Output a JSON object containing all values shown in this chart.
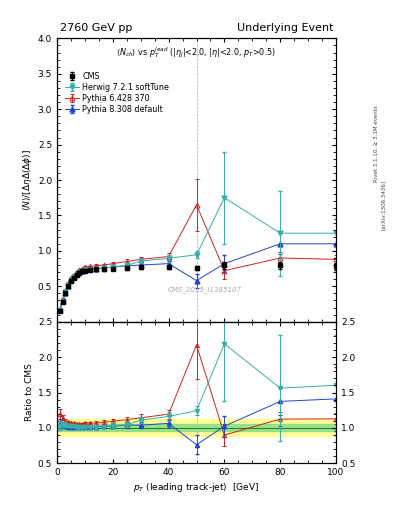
{
  "title_left": "2760 GeV pp",
  "title_right": "Underlying Event",
  "ylabel_main": "\\langle N\\rangle/[\\Delta\\eta\\Delta(\\Delta\\phi)]",
  "ylabel_ratio": "Ratio to CMS",
  "xlabel": "p_{T} (leading track-jet)  [GeV]",
  "right_label1": "Rivet 3.1.10, ≥ 3.1M events",
  "right_label2": "[arXiv:1306.3436]",
  "watermark": "CMS_2015_I1385107",
  "cms_x": [
    1,
    2,
    3,
    4,
    5,
    6,
    7,
    8,
    9,
    10,
    12,
    14,
    17,
    20,
    25,
    30,
    40,
    50,
    60,
    80,
    100
  ],
  "cms_y": [
    0.15,
    0.28,
    0.4,
    0.5,
    0.58,
    0.62,
    0.66,
    0.69,
    0.71,
    0.72,
    0.73,
    0.74,
    0.74,
    0.75,
    0.76,
    0.77,
    0.77,
    0.76,
    0.8,
    0.8,
    0.78
  ],
  "cms_yerr": [
    0.02,
    0.02,
    0.02,
    0.02,
    0.02,
    0.02,
    0.02,
    0.02,
    0.02,
    0.02,
    0.02,
    0.02,
    0.02,
    0.02,
    0.03,
    0.03,
    0.03,
    0.03,
    0.05,
    0.05,
    0.05
  ],
  "herwig_x": [
    1,
    2,
    3,
    4,
    5,
    6,
    7,
    8,
    9,
    10,
    12,
    14,
    17,
    20,
    25,
    30,
    40,
    50,
    60,
    80,
    100
  ],
  "herwig_y": [
    0.155,
    0.295,
    0.415,
    0.515,
    0.595,
    0.635,
    0.665,
    0.695,
    0.715,
    0.725,
    0.735,
    0.745,
    0.755,
    0.775,
    0.795,
    0.855,
    0.895,
    0.945,
    1.75,
    1.25,
    1.25
  ],
  "herwig_yerr": [
    0.01,
    0.01,
    0.01,
    0.01,
    0.01,
    0.01,
    0.01,
    0.01,
    0.01,
    0.01,
    0.01,
    0.02,
    0.02,
    0.03,
    0.03,
    0.03,
    0.05,
    0.05,
    0.65,
    0.6,
    0.55
  ],
  "pythia6_x": [
    1,
    2,
    3,
    4,
    5,
    6,
    7,
    8,
    9,
    10,
    12,
    14,
    17,
    20,
    25,
    30,
    40,
    50,
    60,
    80,
    100
  ],
  "pythia6_y": [
    0.18,
    0.32,
    0.44,
    0.54,
    0.62,
    0.66,
    0.7,
    0.73,
    0.75,
    0.77,
    0.78,
    0.79,
    0.8,
    0.82,
    0.85,
    0.88,
    0.92,
    1.65,
    0.72,
    0.9,
    0.88
  ],
  "pythia6_yerr": [
    0.01,
    0.01,
    0.01,
    0.01,
    0.01,
    0.01,
    0.01,
    0.01,
    0.01,
    0.01,
    0.01,
    0.02,
    0.02,
    0.03,
    0.03,
    0.04,
    0.05,
    0.37,
    0.12,
    0.08,
    0.06
  ],
  "pythia8_x": [
    1,
    2,
    3,
    4,
    5,
    6,
    7,
    8,
    9,
    10,
    12,
    14,
    17,
    20,
    25,
    30,
    40,
    50,
    60,
    80,
    100
  ],
  "pythia8_y": [
    0.16,
    0.29,
    0.41,
    0.51,
    0.59,
    0.63,
    0.67,
    0.7,
    0.72,
    0.73,
    0.74,
    0.75,
    0.76,
    0.77,
    0.79,
    0.8,
    0.82,
    0.58,
    0.82,
    1.1,
    1.1
  ],
  "pythia8_yerr": [
    0.01,
    0.01,
    0.01,
    0.01,
    0.01,
    0.01,
    0.01,
    0.01,
    0.01,
    0.01,
    0.01,
    0.02,
    0.02,
    0.02,
    0.03,
    0.03,
    0.04,
    0.1,
    0.12,
    0.15,
    0.35
  ],
  "color_cms": "#000000",
  "color_herwig": "#3aada8",
  "color_pythia6": "#cc2222",
  "color_pythia8": "#2244cc",
  "ylim_main": [
    0.0,
    4.0
  ],
  "ylim_ratio": [
    0.5,
    2.5
  ],
  "xlim": [
    0,
    100
  ],
  "green_band": [
    0.95,
    1.05
  ],
  "yellow_band": [
    0.88,
    1.12
  ],
  "yticks_main": [
    0.5,
    1.0,
    1.5,
    2.0,
    2.5,
    3.0,
    3.5,
    4.0
  ],
  "yticks_ratio": [
    0.5,
    1.0,
    1.5,
    2.0,
    2.5
  ]
}
